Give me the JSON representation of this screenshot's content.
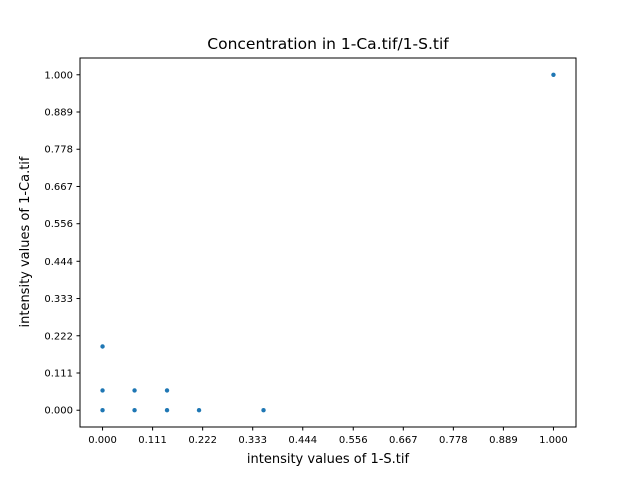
{
  "chart_data": {
    "type": "scatter",
    "title": "Concentration in 1-Ca.tif/1-S.tif",
    "xlabel": "intensity values of 1-S.tif",
    "ylabel": "intensity values of 1-Ca.tif",
    "xlim": [
      -0.05,
      1.05
    ],
    "ylim": [
      -0.05,
      1.05
    ],
    "xticks": [
      0.0,
      0.111,
      0.222,
      0.333,
      0.444,
      0.556,
      0.667,
      0.778,
      0.889,
      1.0
    ],
    "xtick_labels": [
      "0.000",
      "0.111",
      "0.222",
      "0.333",
      "0.444",
      "0.556",
      "0.667",
      "0.778",
      "0.889",
      "1.000"
    ],
    "yticks": [
      0.0,
      0.111,
      0.222,
      0.333,
      0.444,
      0.556,
      0.667,
      0.778,
      0.889,
      1.0
    ],
    "ytick_labels": [
      "0.000",
      "0.111",
      "0.222",
      "0.333",
      "0.444",
      "0.556",
      "0.667",
      "0.778",
      "0.889",
      "1.000"
    ],
    "grid": false,
    "marker_color": "#1f77b4",
    "points": [
      {
        "x": 0.0,
        "y": 0.0
      },
      {
        "x": 0.0,
        "y": 0.059
      },
      {
        "x": 0.0,
        "y": 0.19
      },
      {
        "x": 0.071,
        "y": 0.0
      },
      {
        "x": 0.071,
        "y": 0.059
      },
      {
        "x": 0.143,
        "y": 0.0
      },
      {
        "x": 0.143,
        "y": 0.059
      },
      {
        "x": 0.214,
        "y": 0.0
      },
      {
        "x": 0.357,
        "y": 0.0
      },
      {
        "x": 1.0,
        "y": 1.0
      }
    ]
  }
}
